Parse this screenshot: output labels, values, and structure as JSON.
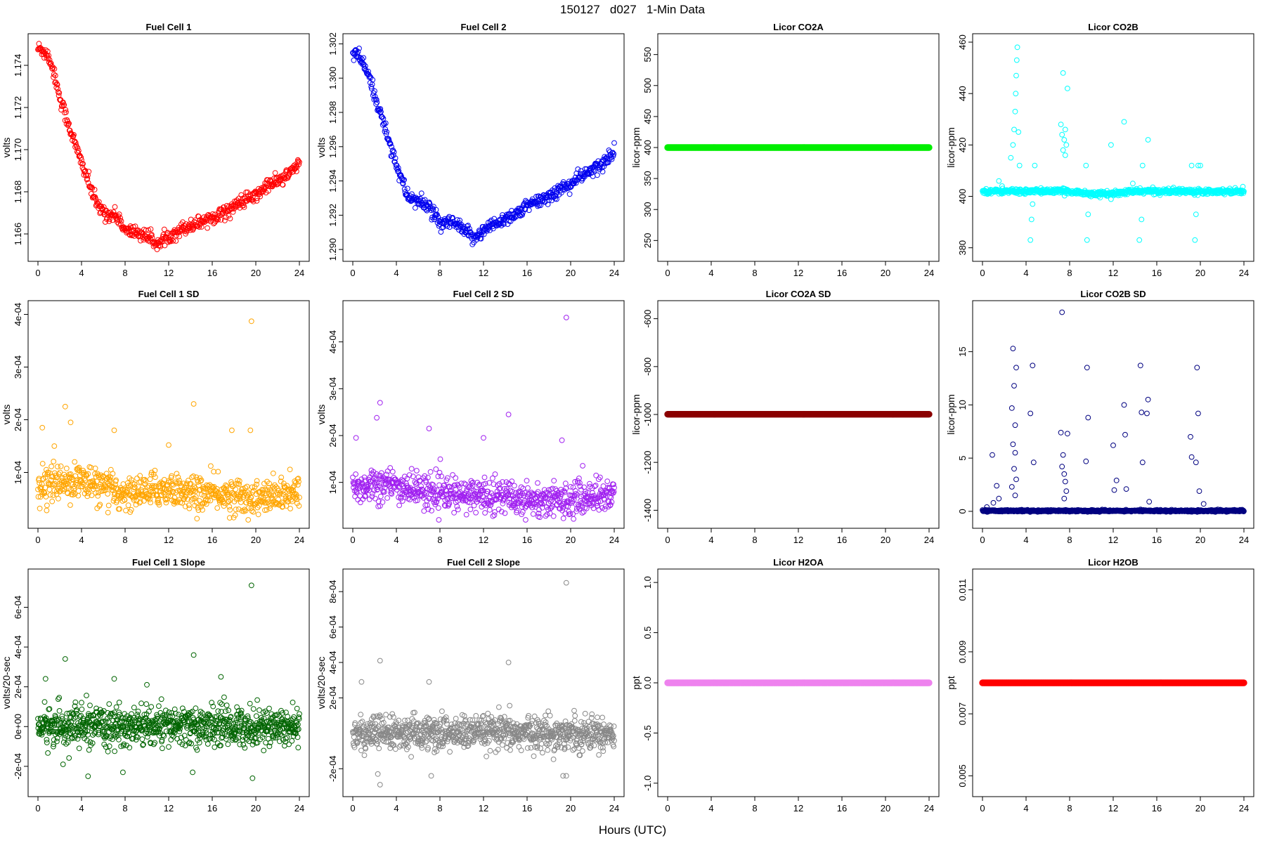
{
  "figure": {
    "title": "150127   d027   1-Min Data",
    "xlabel": "Hours (UTC)"
  },
  "chart_data": [
    {
      "type": "scatter",
      "title": "Fuel Cell 1",
      "ylabel": "volts",
      "color": "#ff0000",
      "xlim": [
        0,
        24
      ],
      "ylim": [
        1.1651,
        1.1751
      ],
      "xticks": [
        0,
        4,
        8,
        12,
        16,
        20,
        24
      ],
      "yticks": [
        1.166,
        1.168,
        1.17,
        1.172,
        1.174
      ],
      "yticklabels": [
        "1.166",
        "1.168",
        "1.170",
        "1.172",
        "1.174"
      ],
      "x": [
        0,
        0.5,
        1,
        1.5,
        2,
        2.5,
        3,
        3.5,
        4,
        4.5,
        5,
        5.5,
        6,
        6.5,
        7,
        7.5,
        8,
        9,
        10,
        11,
        12,
        13,
        14,
        15,
        16,
        17,
        18,
        19,
        20,
        21,
        22,
        23,
        24
      ],
      "y": [
        1.1748,
        1.1747,
        1.1744,
        1.1736,
        1.1725,
        1.1717,
        1.1709,
        1.1701,
        1.1694,
        1.1687,
        1.1679,
        1.1673,
        1.1671,
        1.1669,
        1.1669,
        1.1667,
        1.1661,
        1.1661,
        1.1659,
        1.1655,
        1.1659,
        1.1662,
        1.1664,
        1.1666,
        1.1668,
        1.167,
        1.1673,
        1.1676,
        1.1678,
        1.1683,
        1.1685,
        1.1688,
        1.1694
      ],
      "noise": 0.0002,
      "density": 3
    },
    {
      "type": "scatter",
      "title": "Fuel Cell 2",
      "ylabel": "volts",
      "color": "#0000ee",
      "xlim": [
        0,
        24
      ],
      "ylim": [
        1.2898,
        1.3021
      ],
      "xticks": [
        0,
        4,
        8,
        12,
        16,
        20,
        24
      ],
      "yticks": [
        1.29,
        1.292,
        1.294,
        1.296,
        1.298,
        1.3,
        1.302
      ],
      "yticklabels": [
        "1.290",
        "1.292",
        "1.294",
        "1.296",
        "1.298",
        "1.300",
        "1.302"
      ],
      "x": [
        0,
        0.5,
        1,
        1.5,
        2,
        2.5,
        3,
        3.5,
        4,
        4.5,
        5,
        5.5,
        6,
        6.5,
        7,
        7.5,
        8,
        9,
        10,
        11,
        12,
        13,
        14,
        15,
        16,
        17,
        18,
        19,
        20,
        21,
        22,
        23,
        24
      ],
      "y": [
        1.3014,
        1.3013,
        1.3008,
        1.3,
        1.299,
        1.298,
        1.297,
        1.296,
        1.295,
        1.294,
        1.2931,
        1.293,
        1.2928,
        1.2926,
        1.2926,
        1.292,
        1.2914,
        1.2916,
        1.2912,
        1.2907,
        1.2911,
        1.2915,
        1.2918,
        1.2921,
        1.2925,
        1.2928,
        1.2931,
        1.2935,
        1.2938,
        1.2943,
        1.2946,
        1.295,
        1.2958
      ],
      "noise": 0.00025,
      "density": 3
    },
    {
      "type": "scatter",
      "title": "Licor CO2A",
      "ylabel": "licor-ppm",
      "color": "#00ee00",
      "xlim": [
        0,
        24
      ],
      "ylim": [
        230,
        570
      ],
      "xticks": [
        0,
        4,
        8,
        12,
        16,
        20,
        24
      ],
      "yticks": [
        250,
        300,
        350,
        400,
        450,
        500,
        550
      ],
      "yticklabels": [
        "250",
        "300",
        "350",
        "400",
        "450",
        "500",
        "550"
      ],
      "x": [
        0,
        24
      ],
      "y": [
        400,
        400
      ],
      "noise": 0,
      "density": 6,
      "marker": "filled"
    },
    {
      "type": "scatter",
      "title": "Licor CO2B",
      "ylabel": "licor-ppm",
      "color": "#00ffff",
      "xlim": [
        0,
        24
      ],
      "ylim": [
        378,
        460
      ],
      "xticks": [
        0,
        4,
        8,
        12,
        16,
        20,
        24
      ],
      "yticks": [
        380,
        400,
        420,
        440,
        460
      ],
      "yticklabels": [
        "380",
        "400",
        "420",
        "440",
        "460"
      ],
      "x": [
        0,
        2,
        4,
        6,
        8,
        10,
        12,
        14,
        16,
        18,
        20,
        22,
        24
      ],
      "y": [
        402,
        402,
        402,
        402,
        402,
        401,
        401,
        402,
        402,
        402,
        402,
        402,
        402
      ],
      "noise": 0.6,
      "density": 4,
      "extra": [
        [
          1.5,
          406
        ],
        [
          1.8,
          404
        ],
        [
          2.6,
          415
        ],
        [
          2.8,
          420
        ],
        [
          2.9,
          426
        ],
        [
          3.0,
          433
        ],
        [
          3.05,
          440
        ],
        [
          3.1,
          447
        ],
        [
          3.15,
          453
        ],
        [
          3.2,
          458
        ],
        [
          3.3,
          425
        ],
        [
          3.4,
          412
        ],
        [
          4.4,
          383
        ],
        [
          4.5,
          391
        ],
        [
          4.6,
          397
        ],
        [
          4.8,
          412
        ],
        [
          7.2,
          428
        ],
        [
          7.3,
          424
        ],
        [
          7.4,
          418
        ],
        [
          7.5,
          422
        ],
        [
          7.6,
          426
        ],
        [
          7.7,
          420
        ],
        [
          7.8,
          442
        ],
        [
          7.4,
          448
        ],
        [
          7.6,
          416
        ],
        [
          9.5,
          412
        ],
        [
          9.6,
          383
        ],
        [
          9.7,
          393
        ],
        [
          11.8,
          420
        ],
        [
          13.0,
          429
        ],
        [
          14.4,
          383
        ],
        [
          14.6,
          391
        ],
        [
          14.7,
          412
        ],
        [
          15.2,
          422
        ],
        [
          19.2,
          412
        ],
        [
          19.5,
          383
        ],
        [
          19.6,
          393
        ],
        [
          19.8,
          412
        ],
        [
          20.0,
          412
        ],
        [
          13.8,
          405
        ]
      ]
    },
    {
      "type": "scatter",
      "title": "Fuel Cell 1 SD",
      "ylabel": "volts",
      "color": "#ffa500",
      "xlim": [
        0,
        24
      ],
      "ylim": [
        1e-05,
        0.00041
      ],
      "xticks": [
        0,
        4,
        8,
        12,
        16,
        20,
        24
      ],
      "yticks": [
        0.0001,
        0.0002,
        0.0003,
        0.0004
      ],
      "yticklabels": [
        "1e-04",
        "2e-04",
        "3e-04",
        "4e-04"
      ],
      "x": [
        0,
        2,
        4,
        6,
        8,
        10,
        12,
        14,
        16,
        18,
        20,
        22,
        24
      ],
      "y": [
        7.5e-05,
        8e-05,
        8.5e-05,
        7e-05,
        6e-05,
        6.5e-05,
        7e-05,
        6e-05,
        6e-05,
        5.5e-05,
        5e-05,
        5.5e-05,
        6e-05
      ],
      "noise": 2e-05,
      "density": 4,
      "extra": [
        [
          2.5,
          0.000225
        ],
        [
          14.3,
          0.00023
        ],
        [
          19.6,
          0.000387
        ],
        [
          0.4,
          0.000185
        ],
        [
          7.0,
          0.00018
        ],
        [
          17.8,
          0.00018
        ],
        [
          19.5,
          0.00018
        ],
        [
          3.0,
          0.000195
        ],
        [
          1.5,
          0.00015
        ],
        [
          12.0,
          0.000152
        ]
      ]
    },
    {
      "type": "scatter",
      "title": "Fuel Cell 2 SD",
      "ylabel": "volts",
      "color": "#a020f0",
      "xlim": [
        0,
        24
      ],
      "ylim": [
        2e-05,
        0.00047
      ],
      "xticks": [
        0,
        4,
        8,
        12,
        16,
        20,
        24
      ],
      "yticks": [
        0.0001,
        0.0002,
        0.0003,
        0.0004
      ],
      "yticklabels": [
        "1e-04",
        "2e-04",
        "3e-04",
        "4e-04"
      ],
      "x": [
        0,
        2,
        4,
        6,
        8,
        10,
        12,
        14,
        16,
        18,
        20,
        22,
        24
      ],
      "y": [
        8.5e-05,
        0.0001,
        9e-05,
        8.5e-05,
        7.5e-05,
        7e-05,
        7.5e-05,
        7e-05,
        6.5e-05,
        6e-05,
        6.5e-05,
        7e-05,
        7.5e-05
      ],
      "noise": 2.2e-05,
      "density": 4,
      "extra": [
        [
          2.5,
          0.00027
        ],
        [
          19.6,
          0.000452
        ],
        [
          14.3,
          0.000245
        ],
        [
          2.2,
          0.000238
        ],
        [
          0.3,
          0.000195
        ],
        [
          7.0,
          0.000215
        ],
        [
          12.0,
          0.000195
        ],
        [
          19.2,
          0.00019
        ]
      ]
    },
    {
      "type": "scatter",
      "title": "Licor CO2A SD",
      "ylabel": "licor-ppm",
      "color": "#8b0000",
      "xlim": [
        0,
        24
      ],
      "ylim": [
        -1440,
        -560
      ],
      "xticks": [
        0,
        4,
        8,
        12,
        16,
        20,
        24
      ],
      "yticks": [
        -1400,
        -1200,
        -1000,
        -800,
        -600
      ],
      "yticklabels": [
        "-1400",
        "-1200",
        "-1000",
        "-800",
        "-600"
      ],
      "x": [
        0,
        24
      ],
      "y": [
        -999,
        -999
      ],
      "noise": 0,
      "density": 6,
      "marker": "filled"
    },
    {
      "type": "scatter",
      "title": "Licor CO2B SD",
      "ylabel": "licor-ppm",
      "color": "#000080",
      "xlim": [
        0,
        24
      ],
      "ylim": [
        -0.8,
        19
      ],
      "xticks": [
        0,
        4,
        8,
        12,
        16,
        20,
        24
      ],
      "yticks": [
        0,
        5,
        10,
        15
      ],
      "yticklabels": [
        "0",
        "5",
        "10",
        "15"
      ],
      "x": [
        0,
        4,
        8,
        12,
        16,
        20,
        24
      ],
      "y": [
        0.05,
        0.05,
        0.05,
        0.05,
        0.05,
        0.05,
        0.05
      ],
      "noise": 0.05,
      "density": 5,
      "extra": [
        [
          7.3,
          18.7
        ],
        [
          2.8,
          15.3
        ],
        [
          3.1,
          13.5
        ],
        [
          2.9,
          11.8
        ],
        [
          2.7,
          9.7
        ],
        [
          3.0,
          8.1
        ],
        [
          2.8,
          6.3
        ],
        [
          3.0,
          5.5
        ],
        [
          2.9,
          4.0
        ],
        [
          3.1,
          3.0
        ],
        [
          2.7,
          2.3
        ],
        [
          3.0,
          1.5
        ],
        [
          4.6,
          13.7
        ],
        [
          4.4,
          9.2
        ],
        [
          4.7,
          4.6
        ],
        [
          7.2,
          7.4
        ],
        [
          7.4,
          5.3
        ],
        [
          7.5,
          3.5
        ],
        [
          7.6,
          2.8
        ],
        [
          7.7,
          1.9
        ],
        [
          7.8,
          7.3
        ],
        [
          7.3,
          4.2
        ],
        [
          7.5,
          1.2
        ],
        [
          9.6,
          13.5
        ],
        [
          9.7,
          8.8
        ],
        [
          9.5,
          4.7
        ],
        [
          12.0,
          6.2
        ],
        [
          12.3,
          2.9
        ],
        [
          12.1,
          2.0
        ],
        [
          13.0,
          10.0
        ],
        [
          13.1,
          7.2
        ],
        [
          13.2,
          2.1
        ],
        [
          14.5,
          13.7
        ],
        [
          14.6,
          9.3
        ],
        [
          14.7,
          4.6
        ],
        [
          15.2,
          10.5
        ],
        [
          15.1,
          9.2
        ],
        [
          15.3,
          0.9
        ],
        [
          19.1,
          7.0
        ],
        [
          19.2,
          5.1
        ],
        [
          19.6,
          4.6
        ],
        [
          19.7,
          13.5
        ],
        [
          19.8,
          9.2
        ],
        [
          19.9,
          1.9
        ],
        [
          20.3,
          0.7
        ],
        [
          1.0,
          0.8
        ],
        [
          1.3,
          2.4
        ],
        [
          0.9,
          5.3
        ],
        [
          0.4,
          0.4
        ],
        [
          1.5,
          1.2
        ]
      ]
    },
    {
      "type": "scatter",
      "title": "Fuel Cell 1 Slope",
      "ylabel": "volts/20-sec",
      "color": "#006400",
      "xlim": [
        0,
        24
      ],
      "ylim": [
        -0.00031,
        0.00075
      ],
      "xticks": [
        0,
        4,
        8,
        12,
        16,
        20,
        24
      ],
      "yticks": [
        -0.0002,
        0,
        0.0002,
        0.0004,
        0.0006
      ],
      "yticklabels": [
        "-2e-04",
        "0e+00",
        "2e-04",
        "4e-04",
        "6e-04"
      ],
      "x": [
        0,
        4,
        8,
        12,
        16,
        20,
        24
      ],
      "y": [
        0,
        0,
        0,
        0,
        0,
        0,
        0
      ],
      "noise": 6e-05,
      "density": 5,
      "extra": [
        [
          19.6,
          0.00071
        ],
        [
          2.5,
          0.00034
        ],
        [
          14.3,
          0.00036
        ],
        [
          4.6,
          -0.00025
        ],
        [
          7.8,
          -0.00023
        ],
        [
          19.7,
          -0.00026
        ],
        [
          14.2,
          -0.00023
        ],
        [
          0.7,
          0.00024
        ],
        [
          7.0,
          0.00024
        ],
        [
          16.8,
          0.00025
        ],
        [
          2.3,
          -0.00019
        ],
        [
          10.0,
          0.00021
        ]
      ]
    },
    {
      "type": "scatter",
      "title": "Fuel Cell 2 Slope",
      "ylabel": "volts/20-sec",
      "color": "#888888",
      "xlim": [
        0,
        24
      ],
      "ylim": [
        -0.00031,
        0.00088
      ],
      "xticks": [
        0,
        4,
        8,
        12,
        16,
        20,
        24
      ],
      "yticks": [
        -0.0002,
        0.0002,
        0.0004,
        0.0006,
        0.0008
      ],
      "yticklabels": [
        "-2e-04",
        "2e-04",
        "4e-04",
        "6e-04",
        "8e-04"
      ],
      "x": [
        0,
        4,
        8,
        12,
        16,
        20,
        24
      ],
      "y": [
        0,
        0,
        0,
        0,
        0,
        0,
        0
      ],
      "noise": 6e-05,
      "density": 5,
      "extra": [
        [
          19.6,
          0.00085
        ],
        [
          2.5,
          0.00041
        ],
        [
          14.3,
          0.0004
        ],
        [
          2.5,
          -0.00029
        ],
        [
          19.3,
          -0.00024
        ],
        [
          19.6,
          -0.00024
        ],
        [
          7.2,
          -0.00024
        ],
        [
          2.3,
          -0.00023
        ],
        [
          0.8,
          0.00029
        ],
        [
          7.0,
          0.00029
        ]
      ]
    },
    {
      "type": "scatter",
      "title": "Licor H2OA",
      "ylabel": "ppt",
      "color": "#ee82ee",
      "xlim": [
        0,
        24
      ],
      "ylim": [
        -1.05,
        1.05
      ],
      "xticks": [
        0,
        4,
        8,
        12,
        16,
        20,
        24
      ],
      "yticks": [
        -1.0,
        -0.5,
        0.0,
        0.5,
        1.0
      ],
      "yticklabels": [
        "-1.0",
        "-0.5",
        "0.0",
        "0.5",
        "1.0"
      ],
      "x": [
        0,
        24
      ],
      "y": [
        0,
        0
      ],
      "noise": 0,
      "density": 6,
      "marker": "filled"
    },
    {
      "type": "scatter",
      "title": "Licor H2OB",
      "ylabel": "ppt",
      "color": "#ff0000",
      "xlim": [
        0,
        24
      ],
      "ylim": [
        0.0046,
        0.0114
      ],
      "xticks": [
        0,
        4,
        8,
        12,
        16,
        20,
        24
      ],
      "yticks": [
        0.005,
        0.007,
        0.009,
        0.011
      ],
      "yticklabels": [
        "0.005",
        "0.007",
        "0.009",
        "0.011"
      ],
      "x": [
        0,
        24
      ],
      "y": [
        0.008,
        0.008
      ],
      "noise": 0,
      "density": 6,
      "marker": "filled"
    }
  ]
}
